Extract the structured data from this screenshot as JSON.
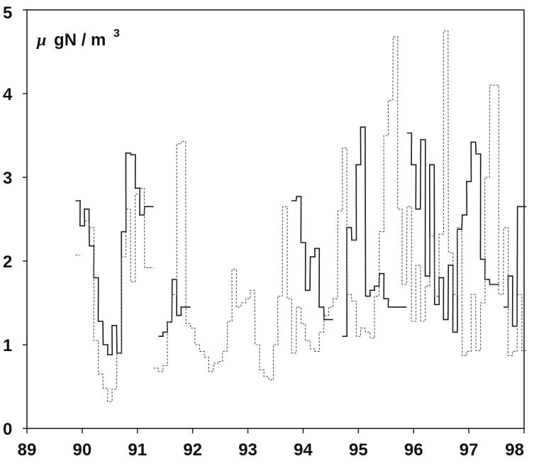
{
  "chart_data": {
    "type": "line",
    "title": "",
    "unit_label": {
      "mu": "μ",
      "rest": "gN / m",
      "sup": "3"
    },
    "xlabel": "",
    "ylabel": "",
    "xlim": [
      89,
      98
    ],
    "ylim": [
      0,
      5
    ],
    "x_ticks": [
      89,
      90,
      91,
      92,
      93,
      94,
      95,
      96,
      97,
      98
    ],
    "y_ticks": [
      0,
      1,
      2,
      3,
      4,
      5
    ],
    "grid": false,
    "legend": "none",
    "series": [
      {
        "style": "solid",
        "color": "#1a1a1a",
        "step_width": 0.0833,
        "segments": [
          {
            "x": [
              89.88,
              89.96,
              90.04,
              90.13,
              90.21,
              90.29,
              90.38,
              90.46,
              90.54,
              90.63,
              90.71,
              90.79,
              90.88,
              90.96,
              91.04,
              91.13,
              91.21
            ],
            "y": [
              2.72,
              2.42,
              2.62,
              2.18,
              1.8,
              1.28,
              1.0,
              0.88,
              1.23,
              0.9,
              2.35,
              3.29,
              3.27,
              2.87,
              2.55,
              2.65,
              2.65
            ]
          },
          {
            "x": [
              91.38,
              91.46,
              91.54,
              91.63,
              91.71,
              91.79,
              91.88
            ],
            "y": [
              1.1,
              1.15,
              1.27,
              1.78,
              1.35,
              1.45,
              1.45
            ]
          },
          {
            "x": [
              93.79,
              93.88,
              93.96,
              94.04,
              94.13,
              94.21,
              94.29,
              94.38,
              94.46
            ],
            "y": [
              2.72,
              2.77,
              2.22,
              1.65,
              2.05,
              2.15,
              1.45,
              1.3,
              1.3
            ]
          },
          {
            "x": [
              94.71,
              94.79,
              94.88,
              94.96,
              95.04,
              95.13,
              95.21,
              95.29,
              95.38,
              95.46,
              95.54,
              95.63,
              95.71,
              95.79
            ],
            "y": [
              1.1,
              2.4,
              2.25,
              3.15,
              3.6,
              1.58,
              1.65,
              1.7,
              1.85,
              1.55,
              1.45,
              1.45,
              1.45,
              1.45
            ]
          },
          {
            "x": [
              95.88,
              95.96,
              96.04,
              96.13,
              96.21,
              96.29,
              96.38,
              96.46,
              96.54,
              96.63,
              96.71,
              96.79,
              96.88,
              96.96,
              97.04,
              97.13,
              97.21,
              97.29,
              97.38,
              97.46
            ],
            "y": [
              3.53,
              3.15,
              2.62,
              3.45,
              1.82,
              3.15,
              1.48,
              1.8,
              1.3,
              1.95,
              1.15,
              2.38,
              2.55,
              2.95,
              3.42,
              3.28,
              2.02,
              1.78,
              1.72,
              1.72
            ]
          },
          {
            "x": [
              97.63,
              97.71,
              97.79,
              97.88,
              97.96
            ],
            "y": [
              1.45,
              1.82,
              1.22,
              2.65,
              2.65
            ]
          }
        ]
      },
      {
        "style": "dashed",
        "color": "#555555",
        "step_width": 0.0833,
        "segments": [
          {
            "x": [
              89.88
            ],
            "y": [
              2.07
            ]
          },
          {
            "x": [
              90.04,
              90.13,
              90.21,
              90.29,
              90.38,
              90.46,
              90.54,
              90.63,
              90.71,
              90.79,
              90.88,
              90.96,
              91.04,
              91.13,
              91.21
            ],
            "y": [
              2.48,
              2.4,
              1.05,
              0.65,
              0.48,
              0.32,
              0.47,
              0.9,
              2.05,
              2.62,
              1.75,
              2.8,
              2.87,
              1.92,
              1.92
            ]
          },
          {
            "x": [
              91.29,
              91.38,
              91.46,
              91.54,
              91.63,
              91.71,
              91.79,
              91.88,
              91.96,
              92.04,
              92.13,
              92.21,
              92.29,
              92.38,
              92.46,
              92.54,
              92.63,
              92.71,
              92.79,
              92.88,
              92.96,
              93.04,
              93.13,
              93.21,
              93.29,
              93.38,
              93.46,
              93.54,
              93.63,
              93.71,
              93.79,
              93.88,
              93.96,
              94.04,
              94.13,
              94.21,
              94.29,
              94.38,
              94.46,
              94.54,
              94.63,
              94.71,
              94.79,
              94.88,
              94.96,
              95.04,
              95.13,
              95.21,
              95.29,
              95.38,
              95.46,
              95.54,
              95.63,
              95.71,
              95.79,
              95.88,
              95.96,
              96.04,
              96.13,
              96.21,
              96.29,
              96.38,
              96.46,
              96.54,
              96.63,
              96.71,
              96.79,
              96.88,
              96.96,
              97.04,
              97.13,
              97.21,
              97.29,
              97.38,
              97.46,
              97.54,
              97.63,
              97.71,
              97.79,
              97.88,
              97.96
            ],
            "y": [
              0.72,
              0.68,
              0.75,
              1.27,
              1.6,
              3.4,
              3.43,
              1.25,
              1.2,
              1.0,
              0.92,
              0.85,
              0.68,
              0.78,
              0.8,
              0.92,
              1.28,
              1.9,
              1.45,
              1.5,
              1.55,
              1.65,
              1.0,
              0.7,
              0.62,
              0.58,
              1.0,
              1.58,
              2.65,
              1.55,
              0.9,
              1.45,
              1.25,
              1.05,
              0.95,
              0.92,
              1.15,
              1.35,
              1.45,
              1.55,
              2.6,
              3.35,
              1.6,
              1.52,
              1.1,
              1.2,
              1.15,
              1.08,
              1.58,
              2.35,
              3.5,
              3.92,
              4.68,
              2.62,
              1.72,
              2.65,
              1.28,
              1.95,
              1.28,
              1.7,
              2.3,
              1.58,
              2.32,
              4.75,
              2.1,
              1.6,
              2.4,
              0.87,
              0.92,
              1.6,
              0.93,
              1.5,
              3.0,
              4.1,
              4.1,
              1.6,
              2.4,
              0.87,
              0.92,
              1.6,
              0.93
            ]
          }
        ]
      }
    ]
  }
}
